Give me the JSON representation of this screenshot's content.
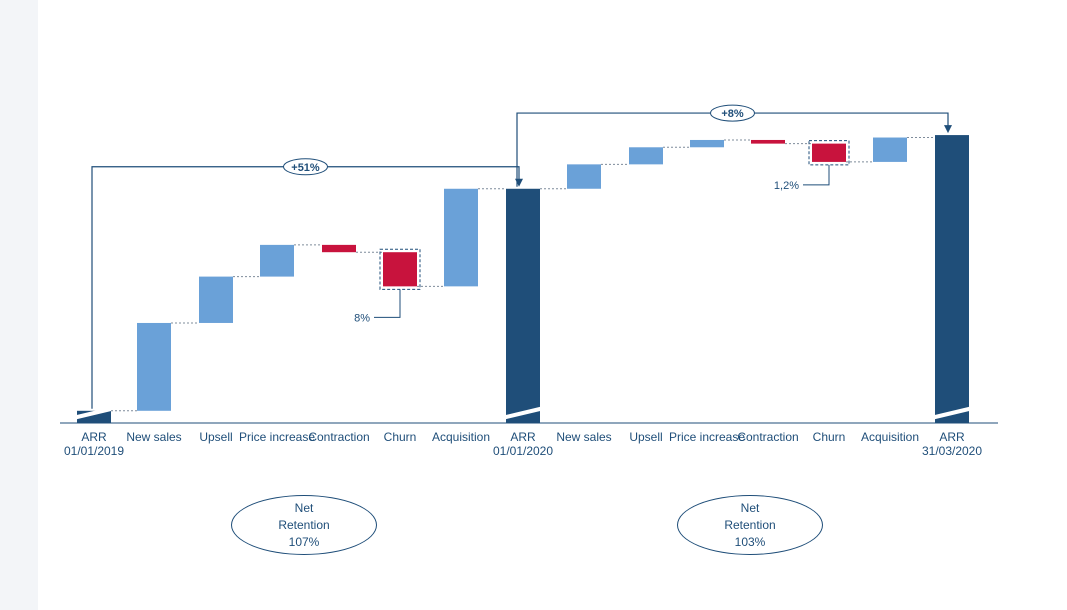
{
  "colors": {
    "dark": "#1f4e79",
    "increase": "#6aa1d8",
    "decrease": "#c8133d",
    "text": "#1f4e79"
  },
  "chart_data": [
    {
      "type": "waterfall",
      "steps": [
        {
          "label": "ARR 01/01/2019",
          "kind": "total",
          "value": 0.5
        },
        {
          "label": "New sales",
          "kind": "delta",
          "value": 3.6
        },
        {
          "label": "Upsell",
          "kind": "delta",
          "value": 1.9
        },
        {
          "label": "Price increase",
          "kind": "delta",
          "value": 1.3
        },
        {
          "label": "Contraction",
          "kind": "delta",
          "value": -0.3
        },
        {
          "label": "Churn",
          "kind": "delta",
          "value": -1.4
        },
        {
          "label": "Acquisition",
          "kind": "delta",
          "value": 4.0
        },
        {
          "label": "ARR 01/01/2020",
          "kind": "total",
          "value": 9.6
        }
      ],
      "growth_label": "+51%",
      "callout": {
        "step": "Churn",
        "text": "8%"
      },
      "net_retention": {
        "title": "Net Retention",
        "value": "107%"
      }
    },
    {
      "type": "waterfall",
      "steps": [
        {
          "label": "ARR 01/01/2020",
          "kind": "total",
          "value": 9.6
        },
        {
          "label": "New sales",
          "kind": "delta",
          "value": 1.0
        },
        {
          "label": "Upsell",
          "kind": "delta",
          "value": 0.7
        },
        {
          "label": "Price increase",
          "kind": "delta",
          "value": 0.3
        },
        {
          "label": "Contraction",
          "kind": "delta",
          "value": -0.15
        },
        {
          "label": "Churn",
          "kind": "delta",
          "value": -0.75
        },
        {
          "label": "Acquisition",
          "kind": "delta",
          "value": 1.0
        },
        {
          "label": "ARR 31/03/2020",
          "kind": "total",
          "value": 11.8
        }
      ],
      "growth_label": "+8%",
      "callout": {
        "step": "Churn",
        "text": "1,2%"
      },
      "net_retention": {
        "title": "Net Retention",
        "value": "103%"
      }
    }
  ]
}
